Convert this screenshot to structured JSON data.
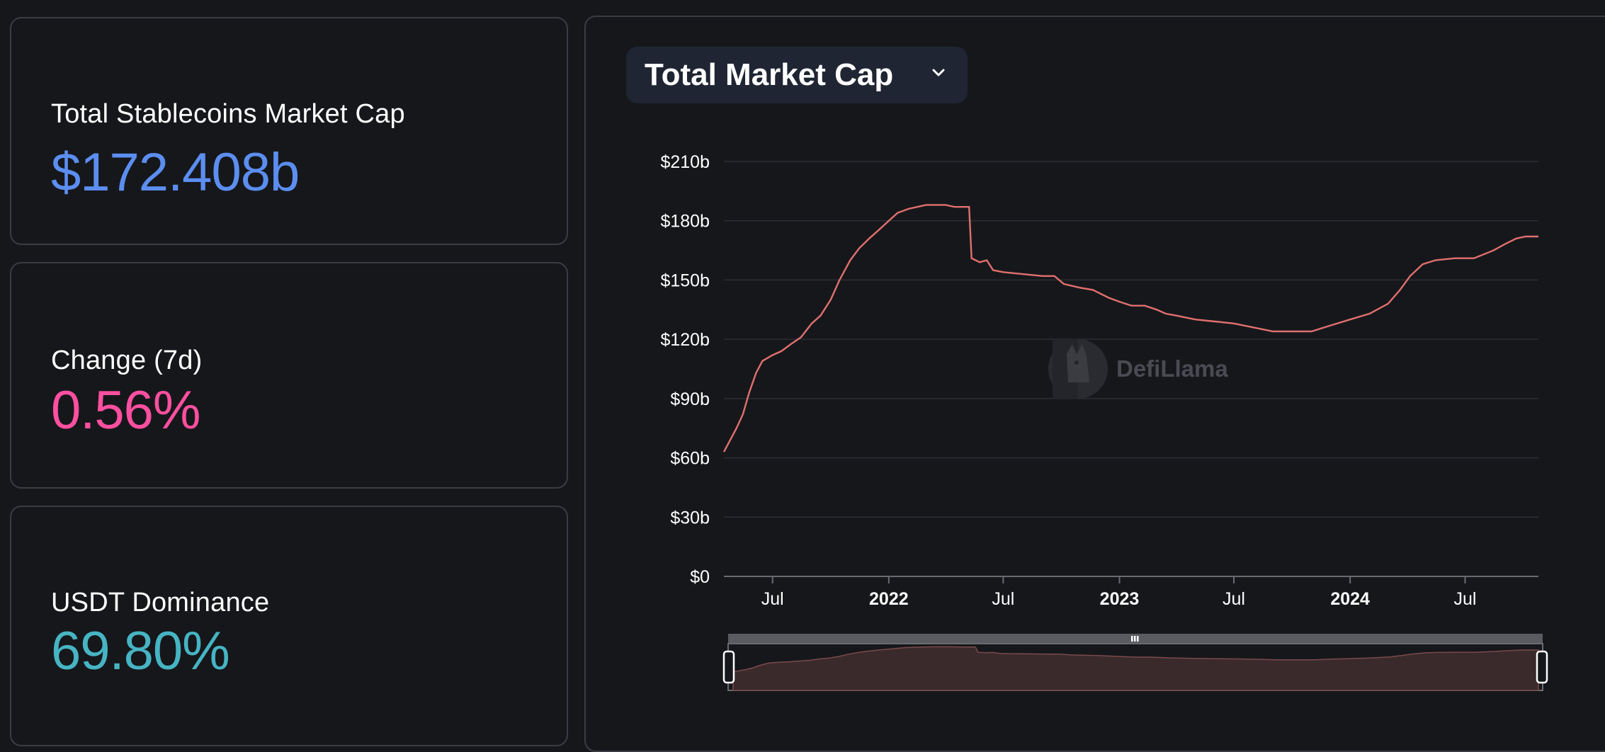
{
  "stats": {
    "market_cap": {
      "label": "Total Stablecoins Market Cap",
      "value": "$172.408b",
      "color": "#5b8ef0"
    },
    "change": {
      "label": "Change (7d)",
      "value": "0.56%",
      "color": "#ff4fa0"
    },
    "dominance": {
      "label": "USDT Dominance",
      "value": "69.80%",
      "color": "#46b4c3"
    }
  },
  "selector": {
    "label": "Total Market Cap",
    "icon": "chevron-down-icon"
  },
  "watermark": {
    "text": "DefiLlama"
  },
  "colors": {
    "line": "#e0706e",
    "grid": "#2c2e34",
    "slider_fill": "#3a2a2c"
  },
  "chart_data": {
    "type": "line",
    "title": "",
    "xlabel": "",
    "ylabel": "",
    "ylim": [
      0,
      210
    ],
    "y_ticks": [
      {
        "value": 0,
        "label": "$0"
      },
      {
        "value": 30,
        "label": "$30b"
      },
      {
        "value": 60,
        "label": "$60b"
      },
      {
        "value": 90,
        "label": "$90b"
      },
      {
        "value": 120,
        "label": "$120b"
      },
      {
        "value": 150,
        "label": "$150b"
      },
      {
        "value": 180,
        "label": "$180b"
      },
      {
        "value": 210,
        "label": "$210b"
      }
    ],
    "xlim": [
      "2021-04-15",
      "2024-10-25"
    ],
    "x_ticks": [
      {
        "value": "2021-07-01",
        "label": "Jul",
        "bold": false
      },
      {
        "value": "2022-01-01",
        "label": "2022",
        "bold": true
      },
      {
        "value": "2022-07-01",
        "label": "Jul",
        "bold": false
      },
      {
        "value": "2023-01-01",
        "label": "2023",
        "bold": true
      },
      {
        "value": "2023-07-01",
        "label": "Jul",
        "bold": false
      },
      {
        "value": "2024-01-01",
        "label": "2024",
        "bold": true
      },
      {
        "value": "2024-07-01",
        "label": "Jul",
        "bold": false
      }
    ],
    "grid": true,
    "legend": "none",
    "series": [
      {
        "units": "USD billions",
        "points": [
          [
            "2021-04-15",
            63
          ],
          [
            "2021-04-25",
            69
          ],
          [
            "2021-05-05",
            75
          ],
          [
            "2021-05-15",
            82
          ],
          [
            "2021-05-25",
            93
          ],
          [
            "2021-06-05",
            103
          ],
          [
            "2021-06-15",
            109
          ],
          [
            "2021-07-01",
            112
          ],
          [
            "2021-07-15",
            114
          ],
          [
            "2021-08-01",
            118
          ],
          [
            "2021-08-15",
            121
          ],
          [
            "2021-09-01",
            128
          ],
          [
            "2021-09-15",
            132
          ],
          [
            "2021-10-01",
            140
          ],
          [
            "2021-10-15",
            150
          ],
          [
            "2021-11-01",
            160
          ],
          [
            "2021-11-15",
            166
          ],
          [
            "2021-12-01",
            171
          ],
          [
            "2021-12-15",
            175
          ],
          [
            "2022-01-01",
            180
          ],
          [
            "2022-01-15",
            184
          ],
          [
            "2022-02-01",
            186
          ],
          [
            "2022-02-15",
            187
          ],
          [
            "2022-03-01",
            188
          ],
          [
            "2022-03-15",
            188
          ],
          [
            "2022-04-01",
            188
          ],
          [
            "2022-04-15",
            187
          ],
          [
            "2022-05-08",
            187
          ],
          [
            "2022-05-12",
            161
          ],
          [
            "2022-05-25",
            159
          ],
          [
            "2022-06-05",
            160
          ],
          [
            "2022-06-15",
            155
          ],
          [
            "2022-07-01",
            154
          ],
          [
            "2022-08-01",
            153
          ],
          [
            "2022-09-01",
            152
          ],
          [
            "2022-09-20",
            152
          ],
          [
            "2022-10-05",
            148
          ],
          [
            "2022-11-01",
            146
          ],
          [
            "2022-11-20",
            145
          ],
          [
            "2022-12-15",
            141
          ],
          [
            "2023-01-01",
            139
          ],
          [
            "2023-01-20",
            137
          ],
          [
            "2023-02-10",
            137
          ],
          [
            "2023-03-01",
            135
          ],
          [
            "2023-03-15",
            133
          ],
          [
            "2023-04-01",
            132
          ],
          [
            "2023-05-01",
            130
          ],
          [
            "2023-06-01",
            129
          ],
          [
            "2023-07-01",
            128
          ],
          [
            "2023-08-01",
            126
          ],
          [
            "2023-09-01",
            124
          ],
          [
            "2023-10-01",
            124
          ],
          [
            "2023-11-01",
            124
          ],
          [
            "2023-12-01",
            127
          ],
          [
            "2024-01-01",
            130
          ],
          [
            "2024-02-01",
            133
          ],
          [
            "2024-03-01",
            138
          ],
          [
            "2024-03-20",
            145
          ],
          [
            "2024-04-05",
            152
          ],
          [
            "2024-04-25",
            158
          ],
          [
            "2024-05-15",
            160
          ],
          [
            "2024-06-15",
            161
          ],
          [
            "2024-07-15",
            161
          ],
          [
            "2024-08-15",
            165
          ],
          [
            "2024-09-01",
            168
          ],
          [
            "2024-09-20",
            171
          ],
          [
            "2024-10-05",
            172
          ],
          [
            "2024-10-25",
            172
          ]
        ]
      }
    ]
  }
}
